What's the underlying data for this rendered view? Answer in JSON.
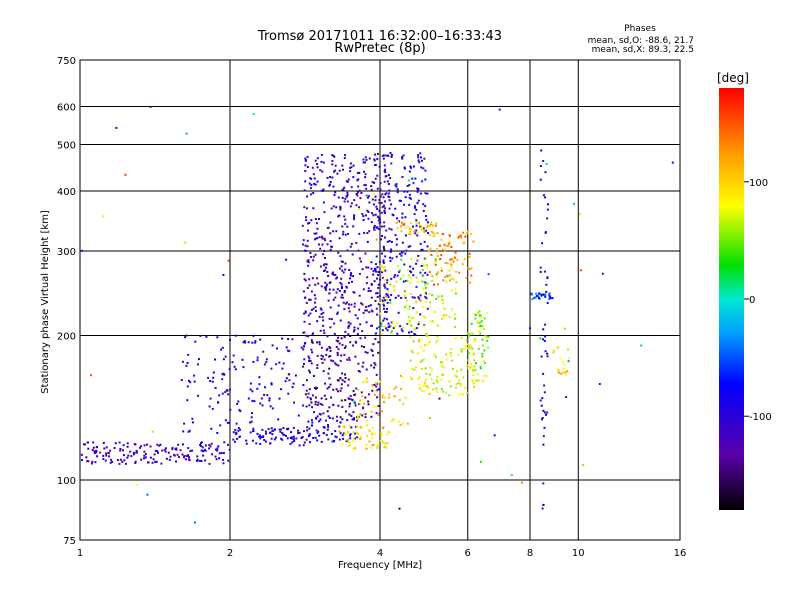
{
  "chart_data": {
    "type": "scatter",
    "title": "Tromsø 20171011 16:32:00–16:33:43",
    "subtitle": "RwPretec (8p)",
    "xlabel": "Frequency [MHz]",
    "ylabel": "Stationary phase Virtual Height [km]",
    "x_scale": "log",
    "y_scale": "log",
    "xlim": [
      1,
      16
    ],
    "ylim": [
      75,
      750
    ],
    "x_ticks": [
      1,
      2,
      4,
      6,
      8,
      10,
      16
    ],
    "x_tick_labels": [
      "1",
      "2",
      "4",
      "6",
      "8",
      "10",
      "16"
    ],
    "y_ticks": [
      75,
      100,
      200,
      300,
      400,
      500,
      600,
      750
    ],
    "y_tick_labels": [
      "75",
      "100",
      "200",
      "300",
      "400",
      "500",
      "600",
      "750"
    ],
    "grid": true,
    "phase_legend": {
      "heading": "Phases",
      "line_o": "mean, sd,O: -88.6, 21.7",
      "line_x": "mean, sd,X:  89.3, 22.5"
    },
    "colorbar": {
      "label": "[deg]",
      "range": [
        -180,
        180
      ],
      "ticks": [
        100,
        0,
        -100
      ],
      "tick_labels": [
        "100",
        "0",
        "-100"
      ],
      "colormap": "rainbow"
    },
    "clusters": [
      {
        "f": [
          1.0,
          2.0
        ],
        "h": [
          108,
          120
        ],
        "phase": -110,
        "n": 170
      },
      {
        "f": [
          2.0,
          2.9
        ],
        "h": [
          118,
          128
        ],
        "phase": -105,
        "n": 80
      },
      {
        "f": [
          2.9,
          3.6
        ],
        "h": [
          120,
          135
        ],
        "phase": -90,
        "n": 60
      },
      {
        "f": [
          3.3,
          4.2
        ],
        "h": [
          116,
          130
        ],
        "phase": 95,
        "n": 55
      },
      {
        "f": [
          1.6,
          3.0
        ],
        "h": [
          125,
          200
        ],
        "phase": -95,
        "n": 170
      },
      {
        "f": [
          2.8,
          4.0
        ],
        "h": [
          135,
          200
        ],
        "phase": -130,
        "n": 200
      },
      {
        "f": [
          2.8,
          4.2
        ],
        "h": [
          200,
          480
        ],
        "phase": -110,
        "n": 500
      },
      {
        "f": [
          3.9,
          5.0
        ],
        "h": [
          200,
          480
        ],
        "phase": -90,
        "n": 230
      },
      {
        "f": [
          4.0,
          5.7
        ],
        "h": [
          200,
          290
        ],
        "phase": 70,
        "n": 130
      },
      {
        "f": [
          4.6,
          6.2
        ],
        "h": [
          150,
          200
        ],
        "phase": 80,
        "n": 120
      },
      {
        "f": [
          5.0,
          6.2
        ],
        "h": [
          255,
          330
        ],
        "phase": 130,
        "n": 70
      },
      {
        "f": [
          6.0,
          6.6
        ],
        "h": [
          160,
          225
        ],
        "phase": 60,
        "n": 65
      },
      {
        "f": [
          3.6,
          4.6
        ],
        "h": [
          130,
          165
        ],
        "phase": 100,
        "n": 50
      },
      {
        "f": [
          4.3,
          5.2
        ],
        "h": [
          325,
          345
        ],
        "phase": 110,
        "n": 40
      },
      {
        "f": [
          8.0,
          8.9
        ],
        "h": [
          238,
          245
        ],
        "phase": -60,
        "n": 28
      },
      {
        "f": [
          8.4,
          8.7
        ],
        "h": [
          80,
          500
        ],
        "phase": -100,
        "n": 50
      },
      {
        "f": [
          8.9,
          9.6
        ],
        "h": [
          165,
          190
        ],
        "phase": 105,
        "n": 18
      },
      {
        "f": [
          1.0,
          16.0
        ],
        "h": [
          80,
          600
        ],
        "phase": 0,
        "n": 50
      }
    ]
  }
}
